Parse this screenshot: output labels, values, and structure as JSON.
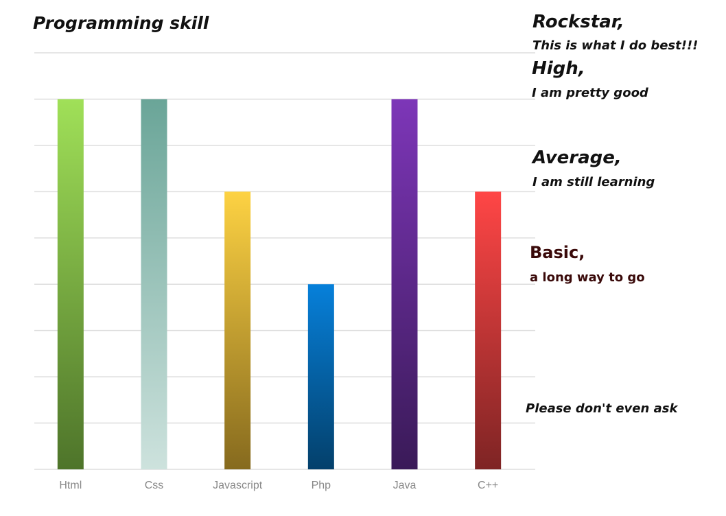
{
  "chart_data": {
    "type": "bar",
    "title": "Programming skill",
    "categories": [
      "Html",
      "Css",
      "Javascript",
      "Php",
      "Java",
      "C++"
    ],
    "values": [
      8,
      8,
      6,
      4,
      8,
      6
    ],
    "ylim": [
      0,
      9
    ],
    "grid": true,
    "bar_colors": [
      [
        "#a0e058",
        "#4e742a"
      ],
      [
        "#6aa598",
        "#cde2dd"
      ],
      [
        "#fdd243",
        "#866a1e"
      ],
      [
        "#0680da",
        "#04406b"
      ],
      [
        "#7d36b8",
        "#3a1a58"
      ],
      [
        "#ff4646",
        "#7e2424"
      ]
    ],
    "level_labels": [
      {
        "name": "Rockstar,",
        "desc": "This is what I do best!!!",
        "style": "top"
      },
      {
        "name": "High,",
        "desc": "I am pretty good",
        "style": "top"
      },
      {
        "name": "Average,",
        "desc": "I am still learning",
        "style": "top"
      },
      {
        "name": "Basic,",
        "desc": "a long way to go",
        "style": "basic"
      },
      {
        "name": "",
        "desc": "Please don't even ask",
        "style": "bottom"
      }
    ]
  }
}
